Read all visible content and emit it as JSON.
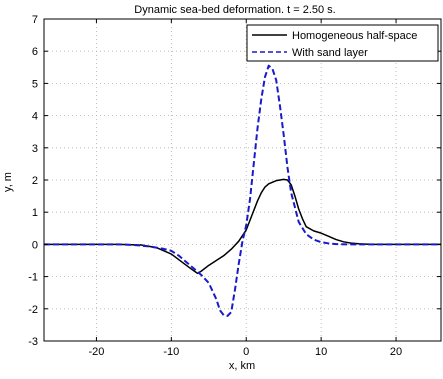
{
  "chart_data": {
    "type": "line",
    "title": "Dynamic sea-bed deformation. t = 2.50 s.",
    "xlabel": "x, km",
    "ylabel": "y, m",
    "xlim": [
      -27,
      26
    ],
    "ylim": [
      -3,
      7
    ],
    "xticks": [
      -20,
      -10,
      0,
      10,
      20
    ],
    "yticks": [
      -3,
      -2,
      -1,
      0,
      1,
      2,
      3,
      4,
      5,
      6,
      7
    ],
    "grid": true,
    "legend_position": "top-right",
    "series": [
      {
        "name": "Homogeneous half-space",
        "color": "#000000",
        "style": "solid",
        "x": [
          -27,
          -20,
          -17,
          -14,
          -12,
          -10,
          -8,
          -7,
          -6.5,
          -6,
          -5,
          -4,
          -3,
          -2,
          -1,
          0,
          0.5,
          1,
          1.5,
          2,
          2.5,
          3,
          4,
          5,
          5.5,
          6,
          6.5,
          7,
          7.5,
          8,
          9,
          10,
          11,
          12,
          13,
          14,
          15,
          16,
          17,
          20,
          26
        ],
        "y": [
          0,
          0,
          0,
          -0.02,
          -0.1,
          -0.3,
          -0.65,
          -0.82,
          -0.9,
          -0.83,
          -0.65,
          -0.5,
          -0.35,
          -0.15,
          0.1,
          0.45,
          0.75,
          1.05,
          1.35,
          1.6,
          1.78,
          1.88,
          1.98,
          2.02,
          2.0,
          1.85,
          1.5,
          1.1,
          0.8,
          0.55,
          0.42,
          0.35,
          0.25,
          0.15,
          0.08,
          0.04,
          0.02,
          0.01,
          0,
          0,
          0
        ]
      },
      {
        "name": "With sand layer",
        "color": "#1a1acc",
        "style": "dashed",
        "x": [
          -27,
          -17,
          -15,
          -13,
          -11,
          -10,
          -9,
          -8,
          -7,
          -6,
          -5,
          -4,
          -3.5,
          -3,
          -2.5,
          -2,
          -1.5,
          -1,
          -0.5,
          0,
          0.5,
          1,
          1.5,
          2,
          2.5,
          3,
          3.5,
          4,
          4.5,
          5,
          5.5,
          6,
          7,
          8,
          9,
          10,
          11,
          12,
          14,
          16,
          26
        ],
        "y": [
          0,
          0,
          -0.02,
          -0.06,
          -0.14,
          -0.2,
          -0.35,
          -0.55,
          -0.75,
          -0.95,
          -1.2,
          -1.7,
          -2.05,
          -2.2,
          -2.22,
          -2.1,
          -1.4,
          -0.6,
          0.1,
          0.6,
          1.4,
          2.5,
          3.6,
          4.5,
          5.2,
          5.55,
          5.45,
          5.1,
          4.3,
          3.4,
          2.4,
          1.6,
          0.7,
          0.32,
          0.15,
          0.07,
          0.03,
          0.01,
          0,
          0,
          0
        ]
      }
    ]
  }
}
